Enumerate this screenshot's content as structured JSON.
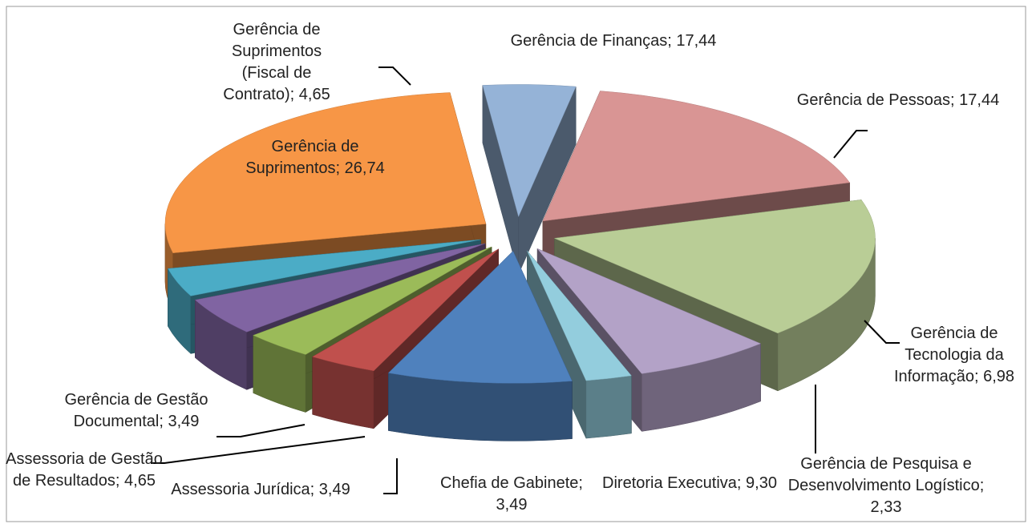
{
  "chart_data": {
    "type": "pie3d",
    "categories": [
      "Gerência de Finanças",
      "Gerência de Pessoas",
      "Gerência de Tecnologia da Informação",
      "Gerência de Pesquisa e Desenvolvimento Logístico",
      "Diretoria Executiva",
      "Chefia de Gabinete",
      "Assessoria Jurídica",
      "Assessoria de Gestão de Resultados",
      "Gerência de Gestão Documental",
      "Gerência de Suprimentos",
      "Gerência de Suprimentos (Fiscal de Contrato)"
    ],
    "values": [
      17.44,
      17.44,
      6.98,
      2.33,
      9.3,
      3.49,
      3.49,
      4.65,
      3.49,
      26.74,
      4.65
    ],
    "value_labels": [
      "17,44",
      "17,44",
      "6,98",
      "2,33",
      "9,30",
      "3,49",
      "3,49",
      "4,65",
      "3,49",
      "26,74",
      "4,65"
    ],
    "label_separator": "; ",
    "colors": [
      "#d99594",
      "#b9cd96",
      "#b3a2c7",
      "#93cddd",
      "#4f81bd",
      "#c0504d",
      "#9bbb59",
      "#8064a2",
      "#4bacc6",
      "#f79646",
      "#95b3d7"
    ]
  }
}
